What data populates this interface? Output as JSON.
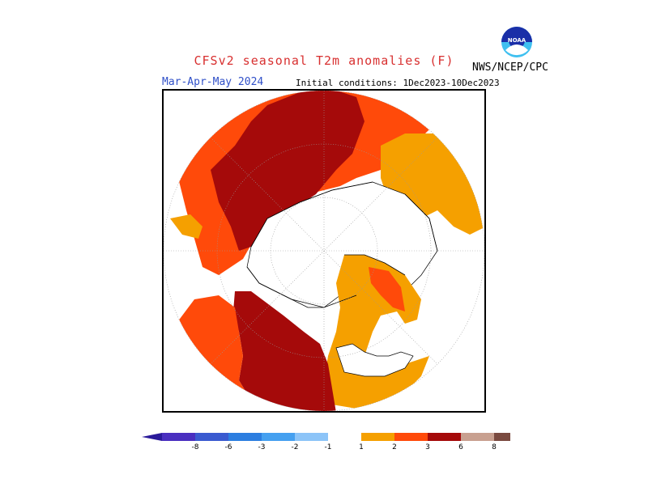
{
  "header": {
    "title": "CFSv2 seasonal T2m anomalies (F)",
    "agency": "NWS/NCEP/CPC",
    "logo_text": "NOAA",
    "period": "Mar-Apr-May 2024",
    "initial_conditions": "Initial conditions: 1Dec2023-10Dec2023"
  },
  "colors": {
    "title": "#d83030",
    "period": "#3050c8",
    "cat_1_2": "#f5a000",
    "cat_2_3": "#ff4a0a",
    "cat_3_6": "#a50a0a",
    "cat_6_8": "#c8a090",
    "cat_gt8": "#7a4a40"
  },
  "legend": {
    "left_labels": [
      "-8",
      "-6",
      "-3",
      "-2",
      "-1"
    ],
    "right_labels": [
      "1",
      "2",
      "3",
      "6",
      "8"
    ],
    "left_colors": [
      "#4a2fc0",
      "#3a5ad0",
      "#2c7ee0",
      "#45a0f0",
      "#8cc4f8"
    ],
    "right_colors": [
      "#f5a000",
      "#ff4a0a",
      "#a50a0a",
      "#c8a090",
      "#7a4a40"
    ],
    "low_arrow_color": "#2a1a9a",
    "high_arrow_color": "#6a3a30"
  }
}
